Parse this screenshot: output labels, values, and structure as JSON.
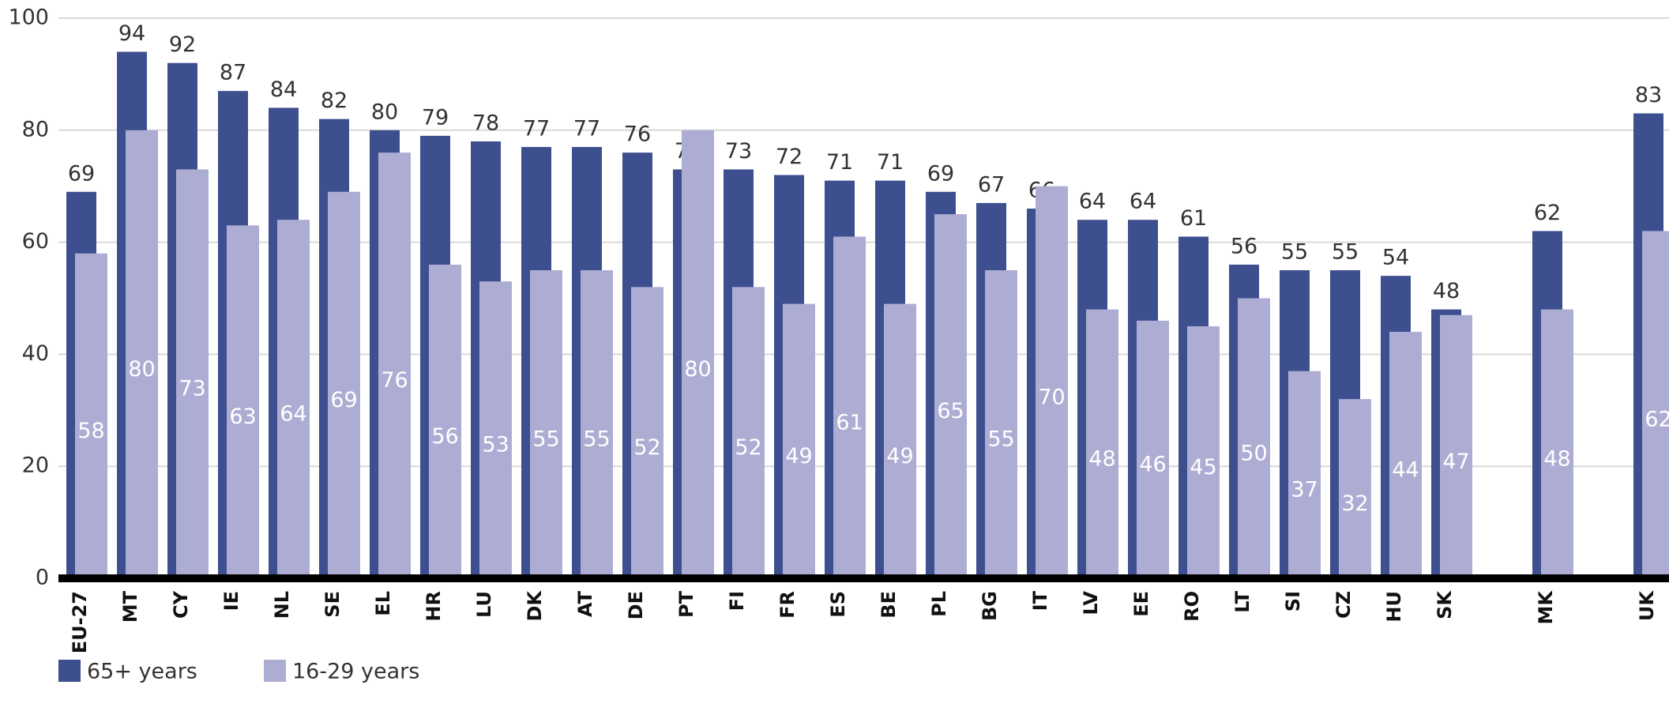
{
  "chart_data": {
    "type": "bar",
    "categories": [
      "EU-27",
      "MT",
      "CY",
      "IE",
      "NL",
      "SE",
      "EL",
      "HR",
      "LU",
      "DK",
      "AT",
      "DE",
      "PT",
      "FI",
      "FR",
      "ES",
      "BE",
      "PL",
      "BG",
      "IT",
      "LV",
      "EE",
      "RO",
      "LT",
      "SI",
      "CZ",
      "HU",
      "SK",
      null,
      "MK",
      null,
      "UK"
    ],
    "series": [
      {
        "name": "65+ years",
        "color": "#3d4f8f",
        "values": [
          69,
          94,
          92,
          87,
          84,
          82,
          80,
          79,
          78,
          77,
          77,
          76,
          73,
          73,
          72,
          71,
          71,
          69,
          67,
          66,
          64,
          64,
          61,
          56,
          55,
          55,
          54,
          48,
          null,
          62,
          null,
          83
        ]
      },
      {
        "name": "16-29 years",
        "color": "#adadd4",
        "values": [
          58,
          80,
          73,
          63,
          64,
          69,
          76,
          56,
          53,
          55,
          55,
          52,
          80,
          52,
          49,
          61,
          49,
          65,
          55,
          70,
          48,
          46,
          45,
          50,
          37,
          32,
          44,
          47,
          null,
          48,
          null,
          62
        ]
      }
    ],
    "ylim": [
      0,
      100
    ],
    "yticks": [
      0,
      20,
      40,
      60,
      80,
      100
    ],
    "grid": true
  }
}
